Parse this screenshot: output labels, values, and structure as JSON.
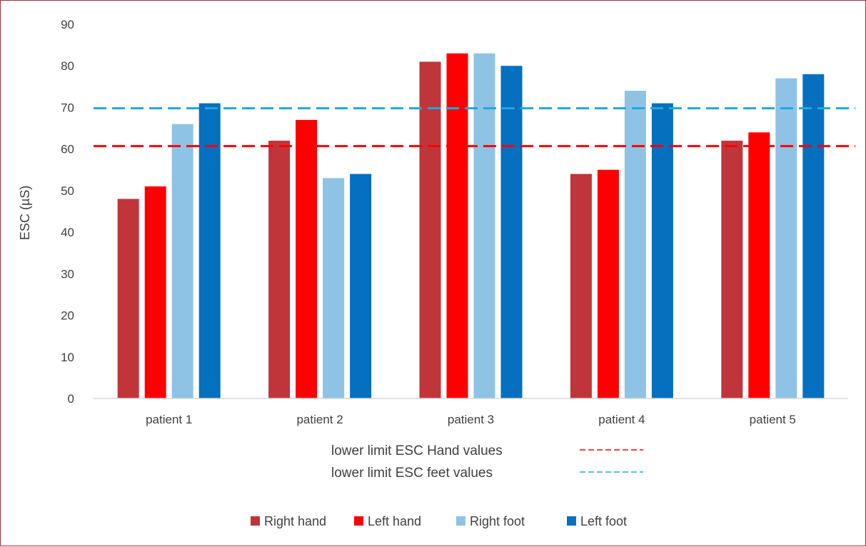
{
  "chart_data": {
    "type": "bar",
    "ylabel": "ESC  (µS)",
    "ylim": [
      0,
      90
    ],
    "yticks": [
      0,
      10,
      20,
      30,
      40,
      50,
      60,
      70,
      80,
      90
    ],
    "categories": [
      "patient 1",
      "patient 2",
      "patient 3",
      "patient 4",
      "patient 5"
    ],
    "series": [
      {
        "name": "Right hand",
        "color": "#c0353a",
        "values": [
          48,
          62,
          81,
          54,
          62
        ]
      },
      {
        "name": "Left hand",
        "color": "#ff0000",
        "values": [
          51,
          67,
          83,
          55,
          64
        ]
      },
      {
        "name": "Right foot",
        "color": "#8ec3e6",
        "values": [
          66,
          53,
          83,
          74,
          77
        ]
      },
      {
        "name": "Left foot",
        "color": "#0570c0",
        "values": [
          71,
          54,
          80,
          71,
          78
        ]
      }
    ],
    "reference_lines": [
      {
        "label": "lower limit  ESC  Hand values",
        "value": 60.7,
        "color": "#ff0000",
        "style": "dashed"
      },
      {
        "label": "lower limit  ESC  feet values",
        "value": 69.8,
        "color": "#1fa8e0",
        "style": "dashed"
      }
    ],
    "grid": false,
    "legend_position": "bottom"
  }
}
